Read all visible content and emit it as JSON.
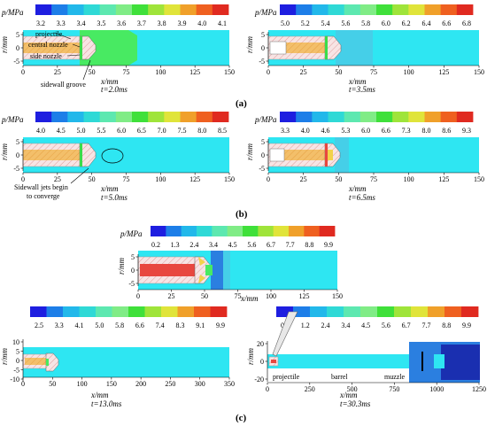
{
  "colorbar_colors": [
    "#1e1ee0",
    "#1d7ee8",
    "#22b8ea",
    "#2fd9d6",
    "#5de8b0",
    "#80ec86",
    "#3fe03a",
    "#9fe43a",
    "#e0e43a",
    "#f0a02a",
    "#ef6020",
    "#e02a20"
  ],
  "figure_colors": {
    "bg_cyan": "#2ee6f2",
    "bg_green": "#48ea62",
    "proj_fill": "#f6e2e2",
    "orange": "#f4c068",
    "red": "#e8473f",
    "blue": "#2b7fe0",
    "dark_blue": "#1a2fb0"
  },
  "labels": {
    "pressure_unit": "p/MPa",
    "r_axis": "r/mm",
    "x_axis": "x/mm",
    "projectile": "projectile",
    "central_nozzle": "central nozzle",
    "side_nozzle": "side nozzle",
    "sidewall_groove": "sidewall groove",
    "jets_line1": "Sidewall jets begin",
    "jets_line2": "to converge",
    "barrel": "barrel",
    "muzzle": "muzzle"
  },
  "sections": {
    "a": "(a)",
    "b": "(b)",
    "c": "(c)"
  },
  "panels": {
    "a1": {
      "time": "t=2.0ms",
      "colorbar_ticks": [
        "3.2",
        "3.3",
        "3.4",
        "3.5",
        "3.6",
        "3.7",
        "3.8",
        "3.9",
        "4.0",
        "4.1"
      ],
      "x_ticks": [
        "0",
        "25",
        "50",
        "75",
        "100",
        "125",
        "150"
      ],
      "y_ticks": [
        "5",
        "0",
        "-5"
      ]
    },
    "a2": {
      "time": "t=3.5ms",
      "colorbar_ticks": [
        "5.0",
        "5.2",
        "5.4",
        "5.6",
        "5.8",
        "6.0",
        "6.2",
        "6.4",
        "6.6",
        "6.8"
      ],
      "x_ticks": [
        "0",
        "25",
        "50",
        "75",
        "100",
        "125",
        "150"
      ],
      "y_ticks": [
        "5",
        "0",
        "-5"
      ]
    },
    "b1": {
      "time": "t=5.0ms",
      "colorbar_ticks": [
        "4.0",
        "4.5",
        "5.0",
        "5.5",
        "6.0",
        "6.5",
        "7.0",
        "7.5",
        "8.0",
        "8.5"
      ],
      "x_ticks": [
        "0",
        "25",
        "50",
        "75",
        "100",
        "125",
        "150"
      ],
      "y_ticks": [
        "5",
        "0",
        "-5"
      ]
    },
    "b2": {
      "time": "t=6.5ms",
      "colorbar_ticks": [
        "3.3",
        "4.0",
        "4.6",
        "5.3",
        "6.0",
        "6.6",
        "7.3",
        "8.0",
        "8.6",
        "9.3"
      ],
      "x_ticks": [
        "0",
        "25",
        "50",
        "75",
        "100",
        "125",
        "150"
      ],
      "y_ticks": [
        "5",
        "0",
        "-5"
      ]
    },
    "c1": {
      "colorbar_ticks": [
        "0.2",
        "1.3",
        "2.4",
        "3.4",
        "4.5",
        "5.6",
        "6.7",
        "7.7",
        "8.8",
        "9.9"
      ],
      "x_ticks": [
        "0",
        "25",
        "50",
        "75",
        "100",
        "125",
        "150"
      ],
      "y_ticks": [
        "5",
        "0",
        "-5"
      ]
    },
    "c2": {
      "time": "t=13.0ms",
      "colorbar_ticks": [
        "2.5",
        "3.3",
        "4.1",
        "5.0",
        "5.8",
        "6.6",
        "7.4",
        "8.3",
        "9.1",
        "9.9"
      ],
      "x_ticks": [
        "0",
        "50",
        "100",
        "150",
        "200",
        "250",
        "300",
        "350"
      ],
      "y_ticks": [
        "10",
        "5",
        "0",
        "-5",
        "-10"
      ]
    },
    "c3": {
      "time": "t=30.3ms",
      "colorbar_ticks": [
        "0.2",
        "1.2",
        "2.4",
        "3.4",
        "4.5",
        "5.6",
        "6.7",
        "7.7",
        "8.8",
        "9.9"
      ],
      "x_ticks": [
        "0",
        "250",
        "500",
        "750",
        "1000",
        "1250"
      ],
      "y_ticks": [
        "20",
        "0",
        "-20"
      ]
    }
  }
}
